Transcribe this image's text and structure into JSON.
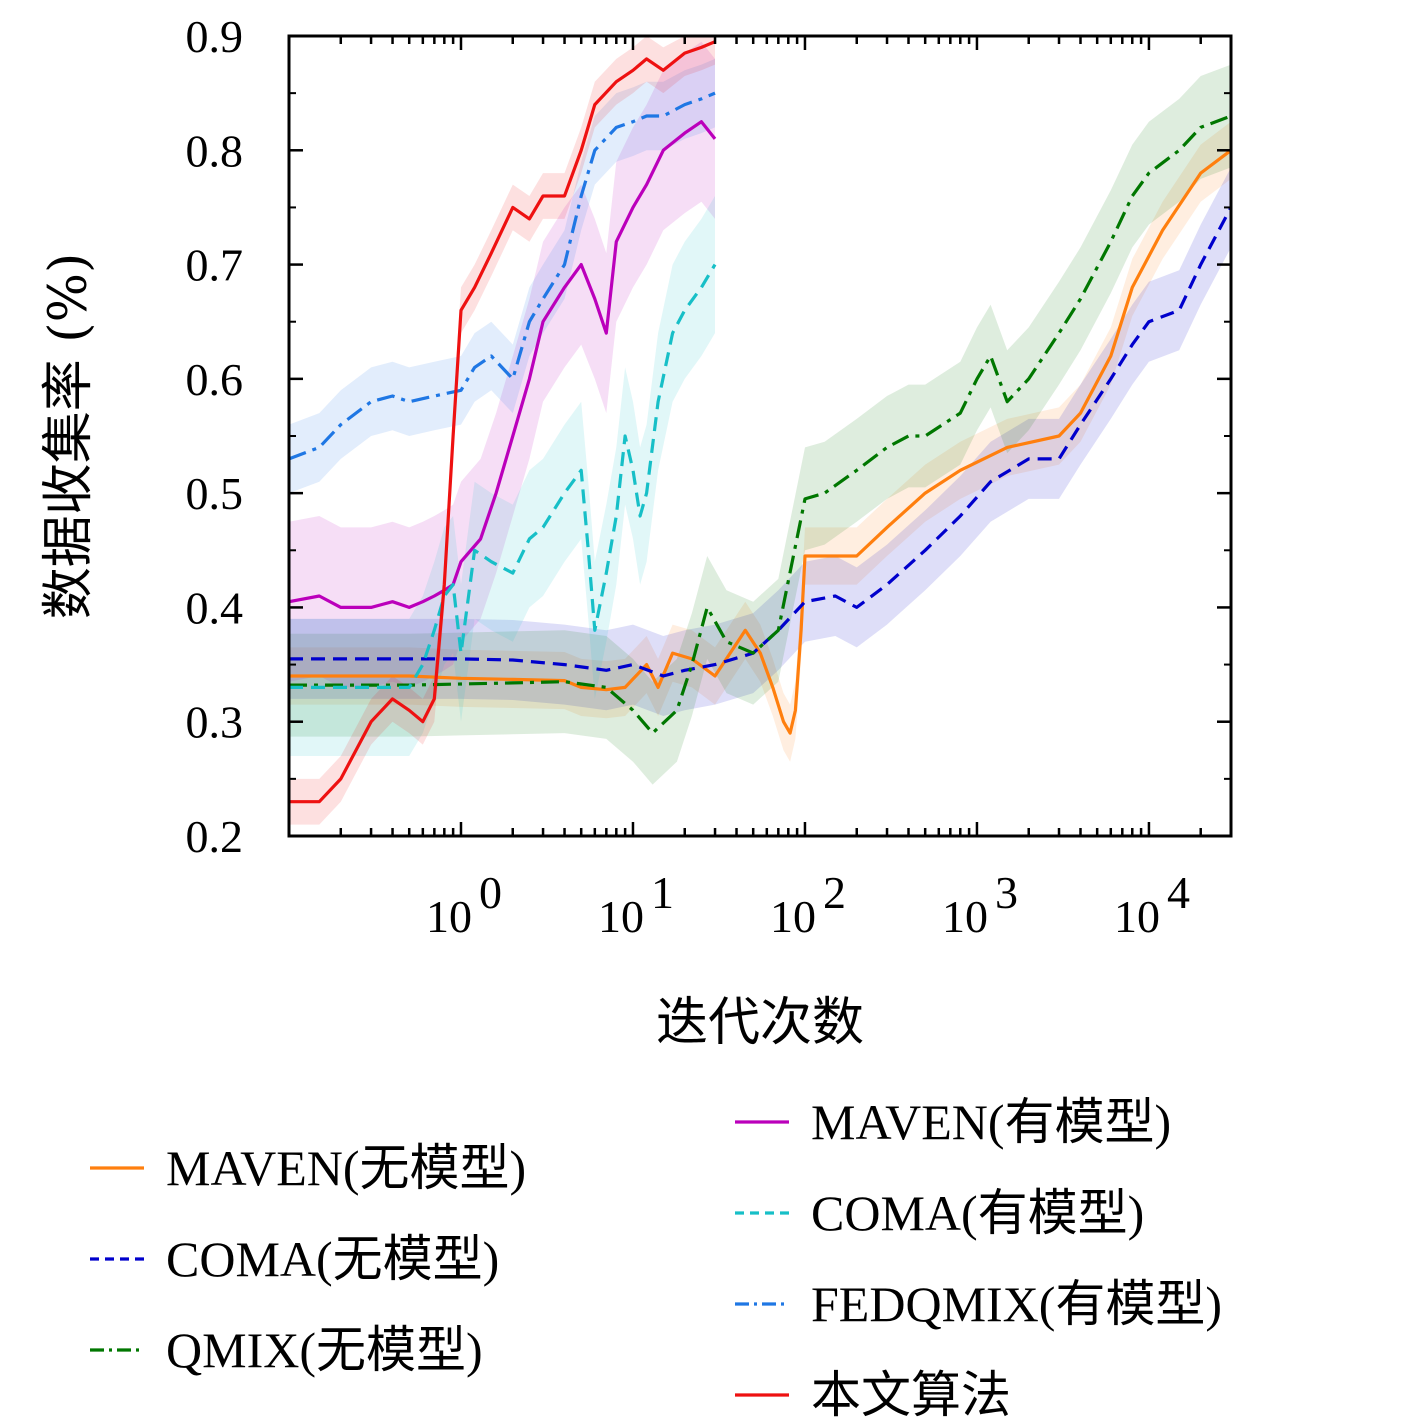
{
  "chart_data": {
    "type": "line",
    "x_scale": "log",
    "xlabel": "迭代次数",
    "ylabel": "数据收集率 (%)",
    "xlim": [
      0.1,
      30000
    ],
    "ylim": [
      0.2,
      0.9
    ],
    "y_ticks": [
      "0.2",
      "0.3",
      "0.4",
      "0.5",
      "0.6",
      "0.7",
      "0.8",
      "0.9"
    ],
    "x_ticks": [
      {
        "value": 1,
        "base": "10",
        "exp": "0"
      },
      {
        "value": 10,
        "base": "10",
        "exp": "1"
      },
      {
        "value": 100,
        "base": "10",
        "exp": "2"
      },
      {
        "value": 1000,
        "base": "10",
        "exp": "3"
      },
      {
        "value": 10000,
        "base": "10",
        "exp": "4"
      }
    ],
    "grid": false,
    "legend_position": "bottom",
    "series": [
      {
        "name": "MAVEN(无模型)",
        "color": "#ff7f0e",
        "dash": "solid",
        "x": [
          0.1,
          0.5,
          1,
          2,
          4,
          5,
          7,
          9,
          12,
          14,
          17,
          22,
          30,
          45,
          55,
          65,
          75,
          82,
          88,
          95,
          100,
          130,
          200,
          300,
          500,
          800,
          1500,
          3000,
          4000,
          6000,
          8000,
          12000,
          20000,
          30000
        ],
        "y": [
          0.34,
          0.34,
          0.338,
          0.337,
          0.336,
          0.33,
          0.328,
          0.33,
          0.35,
          0.33,
          0.36,
          0.355,
          0.34,
          0.38,
          0.36,
          0.33,
          0.3,
          0.29,
          0.31,
          0.38,
          0.445,
          0.445,
          0.445,
          0.47,
          0.5,
          0.52,
          0.54,
          0.55,
          0.57,
          0.62,
          0.68,
          0.73,
          0.78,
          0.8
        ],
        "band": 0.025
      },
      {
        "name": "COMA(无模型)",
        "color": "#0000cc",
        "dash": "dashed",
        "x": [
          0.1,
          0.5,
          1,
          2,
          4,
          7,
          10,
          15,
          20,
          30,
          50,
          70,
          100,
          150,
          200,
          300,
          500,
          800,
          1200,
          2000,
          3000,
          4000,
          6000,
          8000,
          10000,
          15000,
          20000,
          30000
        ],
        "y": [
          0.355,
          0.355,
          0.355,
          0.354,
          0.35,
          0.345,
          0.35,
          0.34,
          0.345,
          0.35,
          0.36,
          0.38,
          0.405,
          0.41,
          0.4,
          0.42,
          0.45,
          0.48,
          0.51,
          0.53,
          0.53,
          0.56,
          0.6,
          0.63,
          0.65,
          0.66,
          0.7,
          0.75
        ],
        "band": 0.035
      },
      {
        "name": "QMIX(无模型)",
        "color": "#007700",
        "dash": "dashdot",
        "x": [
          0.1,
          0.5,
          1,
          2,
          4,
          7,
          10,
          13,
          18,
          22,
          27,
          35,
          50,
          70,
          100,
          130,
          200,
          300,
          400,
          500,
          800,
          1000,
          1200,
          1500,
          2000,
          3000,
          4000,
          6000,
          8000,
          10000,
          15000,
          20000,
          30000
        ],
        "y": [
          0.332,
          0.332,
          0.333,
          0.334,
          0.335,
          0.33,
          0.31,
          0.29,
          0.31,
          0.35,
          0.4,
          0.37,
          0.36,
          0.38,
          0.495,
          0.5,
          0.52,
          0.54,
          0.55,
          0.55,
          0.57,
          0.6,
          0.62,
          0.58,
          0.6,
          0.64,
          0.67,
          0.72,
          0.76,
          0.78,
          0.8,
          0.82,
          0.83
        ],
        "band": 0.045
      },
      {
        "name": "MAVEN(有模型)",
        "color": "#bb00bb",
        "dash": "solid",
        "x": [
          0.1,
          0.15,
          0.2,
          0.3,
          0.4,
          0.5,
          0.6,
          0.7,
          0.8,
          0.9,
          1.0,
          1.3,
          1.6,
          2.0,
          2.5,
          3.0,
          4.0,
          5.0,
          6.0,
          7.0,
          8.0,
          10,
          12,
          15,
          20,
          25,
          30
        ],
        "y": [
          0.405,
          0.41,
          0.4,
          0.4,
          0.405,
          0.4,
          0.405,
          0.41,
          0.415,
          0.42,
          0.44,
          0.46,
          0.5,
          0.55,
          0.6,
          0.65,
          0.68,
          0.7,
          0.67,
          0.64,
          0.72,
          0.75,
          0.77,
          0.8,
          0.815,
          0.825,
          0.81
        ],
        "band": 0.07
      },
      {
        "name": "COMA(有模型)",
        "color": "#17bfc7",
        "dash": "dashed",
        "x": [
          0.1,
          0.3,
          0.5,
          0.6,
          0.7,
          0.8,
          0.9,
          1.0,
          1.2,
          1.5,
          2.0,
          2.5,
          3.0,
          4.0,
          5.0,
          5.5,
          6.0,
          7.0,
          8.0,
          9.0,
          10,
          11,
          12,
          14,
          17,
          20,
          25,
          30
        ],
        "y": [
          0.33,
          0.33,
          0.33,
          0.35,
          0.38,
          0.41,
          0.42,
          0.36,
          0.45,
          0.44,
          0.43,
          0.46,
          0.47,
          0.5,
          0.52,
          0.45,
          0.38,
          0.43,
          0.48,
          0.55,
          0.52,
          0.48,
          0.5,
          0.58,
          0.64,
          0.66,
          0.68,
          0.7
        ],
        "band": 0.06
      },
      {
        "name": "FEDQMIX(有模型)",
        "color": "#1f77e4",
        "dash": "dashdot",
        "x": [
          0.1,
          0.15,
          0.2,
          0.3,
          0.4,
          0.5,
          0.7,
          1.0,
          1.2,
          1.5,
          2.0,
          2.5,
          3.0,
          4.0,
          5.0,
          6.0,
          8.0,
          10,
          12,
          15,
          20,
          25,
          30
        ],
        "y": [
          0.53,
          0.54,
          0.56,
          0.58,
          0.585,
          0.58,
          0.585,
          0.59,
          0.61,
          0.62,
          0.6,
          0.65,
          0.67,
          0.7,
          0.76,
          0.8,
          0.82,
          0.825,
          0.83,
          0.83,
          0.84,
          0.845,
          0.85
        ],
        "band": 0.03
      },
      {
        "name": "本文算法",
        "color": "#ee1111",
        "dash": "solid",
        "x": [
          0.1,
          0.15,
          0.2,
          0.3,
          0.4,
          0.5,
          0.6,
          0.7,
          0.8,
          0.9,
          1.0,
          1.2,
          1.5,
          2.0,
          2.5,
          3.0,
          4.0,
          5.0,
          6.0,
          8.0,
          10,
          12,
          15,
          20,
          25,
          30
        ],
        "y": [
          0.23,
          0.23,
          0.25,
          0.3,
          0.32,
          0.31,
          0.3,
          0.32,
          0.42,
          0.55,
          0.66,
          0.68,
          0.71,
          0.75,
          0.74,
          0.76,
          0.76,
          0.8,
          0.84,
          0.86,
          0.87,
          0.88,
          0.87,
          0.885,
          0.89,
          0.895
        ],
        "band": 0.02
      }
    ],
    "legend_col1": [
      "MAVEN(无模型)",
      "COMA(无模型)",
      "QMIX(无模型)"
    ],
    "legend_col2": [
      "MAVEN(有模型)",
      "COMA(有模型)",
      "FEDQMIX(有模型)",
      "本文算法"
    ]
  }
}
